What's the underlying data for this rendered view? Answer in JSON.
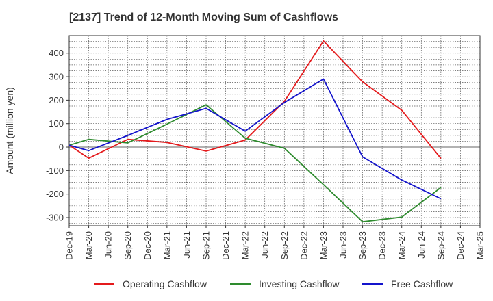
{
  "chart_data": {
    "type": "line",
    "title": "[2137]  Trend of 12-Month Moving Sum of Cashflows",
    "xlabel": "",
    "ylabel": "Amount (million yen)",
    "ylim": [
      -335,
      475
    ],
    "yticks": [
      400,
      300,
      200,
      100,
      0,
      -100,
      -200,
      -300
    ],
    "categories": [
      "Dec-19",
      "Mar-20",
      "Jun-20",
      "Sep-20",
      "Dec-20",
      "Mar-21",
      "Jun-21",
      "Sep-21",
      "Dec-21",
      "Mar-22",
      "Jun-22",
      "Sep-22",
      "Dec-22",
      "Mar-23",
      "Jun-23",
      "Sep-23",
      "Dec-23",
      "Mar-24",
      "Jun-24",
      "Sep-24",
      "Dec-24",
      "Mar-25"
    ],
    "grid": true,
    "legend_position": "bottom",
    "series": [
      {
        "name": "Operating Cashflow",
        "color": "#e41a1c",
        "values": [
          8,
          -47,
          null,
          33,
          null,
          20,
          null,
          -17,
          null,
          30,
          null,
          195,
          null,
          452,
          null,
          278,
          null,
          157,
          null,
          -48,
          null,
          null
        ]
      },
      {
        "name": "Investing Cashflow",
        "color": "#2e8b2e",
        "values": [
          8,
          33,
          null,
          18,
          null,
          98,
          null,
          180,
          null,
          38,
          null,
          -5,
          null,
          -160,
          null,
          -318,
          null,
          -298,
          null,
          -172,
          null,
          null
        ]
      },
      {
        "name": "Free Cashflow",
        "color": "#1414cc",
        "values": [
          8,
          -15,
          null,
          50,
          null,
          118,
          null,
          165,
          null,
          68,
          null,
          190,
          null,
          290,
          null,
          -42,
          null,
          -140,
          null,
          -220,
          null,
          null
        ]
      }
    ]
  }
}
